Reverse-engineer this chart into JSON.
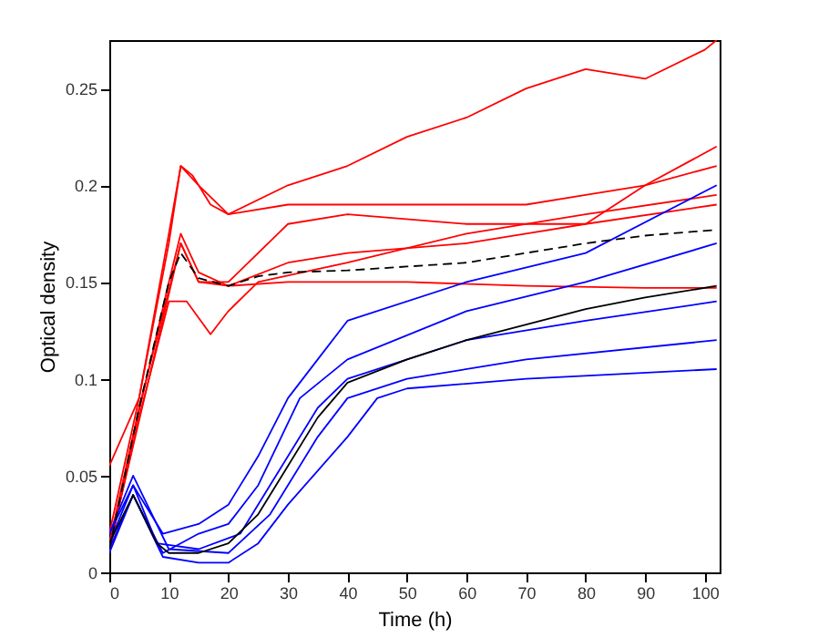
{
  "chart_data": {
    "type": "line",
    "xlabel": "Time (h)",
    "ylabel": "Optical density",
    "xlim": [
      0,
      102.5
    ],
    "xticks": [
      0,
      10,
      20,
      30,
      40,
      50,
      60,
      70,
      80,
      90,
      100
    ],
    "ylim": [
      0,
      0.275
    ],
    "yticks": [
      0,
      0.05,
      0.1,
      0.15,
      0.2,
      0.25
    ],
    "grid": false,
    "legend": false,
    "series": [
      {
        "color": "#ff0000",
        "x": [
          0,
          5,
          10,
          12,
          14,
          17,
          20,
          30,
          40,
          50,
          60,
          70,
          80,
          90,
          100,
          102
        ],
        "values": [
          0.02,
          0.09,
          0.17,
          0.21,
          0.205,
          0.19,
          0.185,
          0.2,
          0.21,
          0.225,
          0.235,
          0.25,
          0.26,
          0.255,
          0.27,
          0.275
        ]
      },
      {
        "color": "#ff0000",
        "x": [
          0,
          5,
          10,
          12,
          15,
          20,
          30,
          40,
          50,
          60,
          70,
          80,
          90,
          102
        ],
        "values": [
          0.055,
          0.09,
          0.175,
          0.21,
          0.2,
          0.185,
          0.19,
          0.19,
          0.19,
          0.19,
          0.19,
          0.195,
          0.2,
          0.22
        ]
      },
      {
        "color": "#ff0000",
        "x": [
          0,
          4,
          10,
          12,
          15,
          20,
          30,
          50,
          70,
          90,
          102
        ],
        "values": [
          0.01,
          0.07,
          0.15,
          0.175,
          0.155,
          0.148,
          0.15,
          0.15,
          0.148,
          0.147,
          0.147
        ]
      },
      {
        "color": "#ff0000",
        "x": [
          0,
          5,
          10,
          13,
          17,
          20,
          25,
          40,
          60,
          80,
          102
        ],
        "values": [
          0.012,
          0.08,
          0.14,
          0.14,
          0.123,
          0.135,
          0.15,
          0.16,
          0.175,
          0.185,
          0.195
        ]
      },
      {
        "color": "#ff0000",
        "x": [
          0,
          5,
          12,
          15,
          20,
          30,
          40,
          60,
          80,
          102
        ],
        "values": [
          0.015,
          0.085,
          0.17,
          0.15,
          0.148,
          0.16,
          0.165,
          0.17,
          0.18,
          0.19
        ]
      },
      {
        "color": "#ff0000",
        "x": [
          0,
          12,
          15,
          20,
          30,
          40,
          60,
          80,
          90,
          102
        ],
        "values": [
          0.013,
          0.17,
          0.15,
          0.15,
          0.18,
          0.185,
          0.18,
          0.18,
          0.2,
          0.21
        ]
      },
      {
        "color": "#0000ff",
        "x": [
          0,
          4,
          9,
          15,
          20,
          25,
          30,
          35,
          40,
          60,
          80,
          102
        ],
        "values": [
          0.02,
          0.045,
          0.02,
          0.025,
          0.035,
          0.06,
          0.09,
          0.11,
          0.13,
          0.15,
          0.165,
          0.2
        ]
      },
      {
        "color": "#0000ff",
        "x": [
          0,
          4,
          9,
          15,
          20,
          25,
          30,
          40,
          45,
          50,
          70,
          102
        ],
        "values": [
          0.01,
          0.04,
          0.008,
          0.005,
          0.005,
          0.015,
          0.035,
          0.07,
          0.09,
          0.095,
          0.1,
          0.105
        ]
      },
      {
        "color": "#0000ff",
        "x": [
          0,
          4,
          8,
          15,
          22,
          28,
          35,
          40,
          60,
          80,
          102
        ],
        "values": [
          0.015,
          0.045,
          0.015,
          0.012,
          0.02,
          0.05,
          0.085,
          0.1,
          0.12,
          0.13,
          0.14
        ]
      },
      {
        "color": "#0000ff",
        "x": [
          0,
          4,
          10,
          20,
          27,
          35,
          40,
          50,
          70,
          102
        ],
        "values": [
          0.02,
          0.05,
          0.012,
          0.01,
          0.03,
          0.07,
          0.09,
          0.1,
          0.11,
          0.12
        ]
      },
      {
        "color": "#0000ff",
        "x": [
          0,
          4,
          9,
          15,
          20,
          25,
          32,
          40,
          60,
          80,
          102
        ],
        "values": [
          0.012,
          0.04,
          0.01,
          0.02,
          0.025,
          0.045,
          0.09,
          0.11,
          0.135,
          0.15,
          0.17
        ]
      },
      {
        "color": "#000000",
        "line_style": "dashed",
        "x": [
          0,
          5,
          10,
          12,
          15,
          20,
          25,
          30,
          40,
          50,
          60,
          70,
          80,
          90,
          102
        ],
        "values": [
          0.012,
          0.085,
          0.15,
          0.165,
          0.152,
          0.148,
          0.153,
          0.155,
          0.156,
          0.158,
          0.16,
          0.165,
          0.17,
          0.174,
          0.177
        ]
      },
      {
        "color": "#000000",
        "line_style": "solid",
        "x": [
          0,
          4,
          8,
          10,
          15,
          20,
          25,
          30,
          35,
          40,
          50,
          60,
          70,
          80,
          90,
          102
        ],
        "values": [
          0.015,
          0.04,
          0.015,
          0.01,
          0.01,
          0.015,
          0.03,
          0.055,
          0.08,
          0.098,
          0.11,
          0.12,
          0.128,
          0.136,
          0.142,
          0.148
        ]
      }
    ]
  }
}
